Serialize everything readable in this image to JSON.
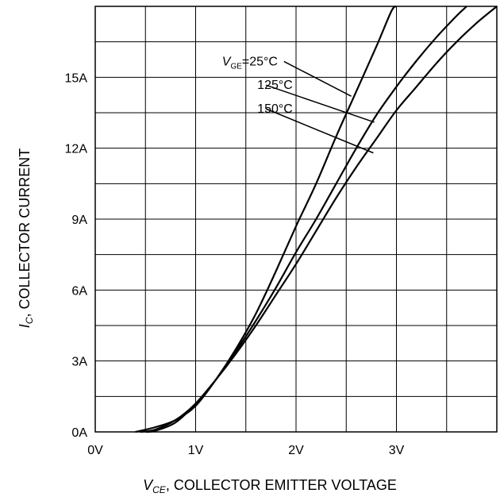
{
  "chart_data": {
    "type": "line",
    "xlabel": {
      "main": "V",
      "sub": "CE",
      "rest": ", COLLECTOR EMITTER VOLTAGE"
    },
    "ylabel": {
      "main": "I",
      "sub": "C",
      "rest": ", COLLECTOR CURRENT"
    },
    "x_ticks": [
      {
        "value": 0,
        "label": "0V"
      },
      {
        "value": 1,
        "label": "1V"
      },
      {
        "value": 2,
        "label": "2V"
      },
      {
        "value": 3,
        "label": "3V"
      }
    ],
    "y_ticks": [
      {
        "value": 0,
        "label": "0A"
      },
      {
        "value": 3,
        "label": "3A"
      },
      {
        "value": 6,
        "label": "6A"
      },
      {
        "value": 9,
        "label": "9A"
      },
      {
        "value": 12,
        "label": "12A"
      },
      {
        "value": 15,
        "label": "15A"
      }
    ],
    "xlim": [
      0,
      4
    ],
    "ylim": [
      0,
      18
    ],
    "grid": true,
    "line_color": "#000000",
    "series": [
      {
        "name": "25°C",
        "points": [
          [
            0.4,
            0.0
          ],
          [
            0.6,
            0.2
          ],
          [
            0.8,
            0.5
          ],
          [
            1.0,
            1.1
          ],
          [
            1.2,
            2.2
          ],
          [
            1.4,
            3.5
          ],
          [
            1.6,
            5.0
          ],
          [
            1.8,
            6.8
          ],
          [
            2.0,
            8.7
          ],
          [
            2.2,
            10.5
          ],
          [
            2.4,
            12.5
          ],
          [
            2.6,
            14.4
          ],
          [
            2.8,
            16.3
          ],
          [
            2.95,
            17.8
          ],
          [
            3.0,
            18.0
          ]
        ]
      },
      {
        "name": "125°C",
        "points": [
          [
            0.45,
            0.0
          ],
          [
            0.6,
            0.1
          ],
          [
            0.8,
            0.5
          ],
          [
            1.0,
            1.2
          ],
          [
            1.2,
            2.2
          ],
          [
            1.4,
            3.4
          ],
          [
            1.6,
            4.7
          ],
          [
            1.8,
            6.1
          ],
          [
            2.0,
            7.6
          ],
          [
            2.2,
            9.0
          ],
          [
            2.4,
            10.5
          ],
          [
            2.6,
            12.0
          ],
          [
            2.8,
            13.4
          ],
          [
            3.0,
            14.6
          ],
          [
            3.2,
            15.7
          ],
          [
            3.4,
            16.7
          ],
          [
            3.6,
            17.6
          ],
          [
            3.7,
            18.0
          ]
        ]
      },
      {
        "name": "150°C",
        "points": [
          [
            0.5,
            0.0
          ],
          [
            0.6,
            0.05
          ],
          [
            0.8,
            0.4
          ],
          [
            1.0,
            1.2
          ],
          [
            1.2,
            2.2
          ],
          [
            1.4,
            3.3
          ],
          [
            1.6,
            4.5
          ],
          [
            1.8,
            5.8
          ],
          [
            2.0,
            7.1
          ],
          [
            2.2,
            8.5
          ],
          [
            2.4,
            9.9
          ],
          [
            2.6,
            11.2
          ],
          [
            2.8,
            12.4
          ],
          [
            3.0,
            13.6
          ],
          [
            3.2,
            14.6
          ],
          [
            3.4,
            15.6
          ],
          [
            3.6,
            16.5
          ],
          [
            3.8,
            17.3
          ],
          [
            4.0,
            18.0
          ]
        ]
      }
    ],
    "annotations": [
      {
        "main": "V",
        "sub": "GE",
        "rest": "=25°C",
        "series": 0,
        "text_at": [
          0.75,
          15.5
        ],
        "leader_from": [
          1.88,
          15.5
        ],
        "leader_to": [
          2.55,
          14.2
        ]
      },
      {
        "main": "",
        "sub": "",
        "rest": "125°C",
        "series": 1,
        "text_at": [
          1.0,
          14.5
        ],
        "leader_from": [
          1.7,
          14.5
        ],
        "leader_to": [
          2.78,
          13.1
        ]
      },
      {
        "main": "",
        "sub": "",
        "rest": "150°C",
        "series": 2,
        "text_at": [
          1.0,
          13.5
        ],
        "leader_from": [
          1.7,
          13.5
        ],
        "leader_to": [
          2.77,
          11.8
        ]
      }
    ]
  }
}
